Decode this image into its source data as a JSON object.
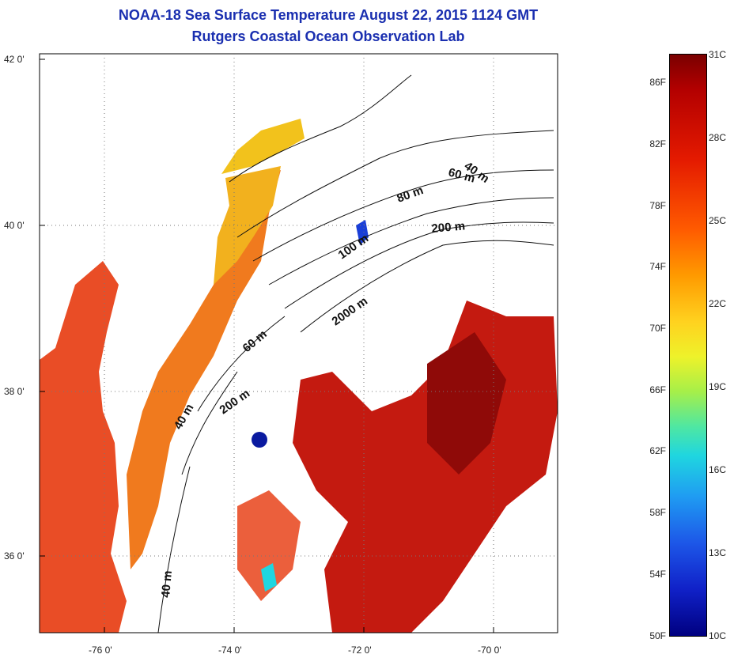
{
  "header": {
    "title": "NOAA-18 Sea Surface Temperature August 22, 2015 1124 GMT",
    "subtitle": "Rutgers Coastal Ocean Observation Lab"
  },
  "map": {
    "lat_ticks": [
      "42 0'",
      "40 0'",
      "38 0'",
      "36 0'"
    ],
    "lon_ticks": [
      "-76 0'",
      "-74 0'",
      "-72 0'",
      "-70 0'"
    ],
    "depth_labels": [
      "40 m",
      "60 m",
      "80 m",
      "200 m",
      "100 m",
      "2000 m",
      "60 m",
      "200 m",
      "40 m",
      "40 m"
    ]
  },
  "colorbar": {
    "fahrenheit": [
      "86F",
      "82F",
      "78F",
      "74F",
      "70F",
      "66F",
      "62F",
      "58F",
      "54F",
      "50F"
    ],
    "celsius": [
      "31C",
      "28C",
      "25C",
      "22C",
      "19C",
      "16C",
      "13C",
      "10C"
    ],
    "colors": [
      "#7a0000",
      "#e41a00",
      "#ff9a00",
      "#eef22a",
      "#4fe7a2",
      "#1f9cf2",
      "#1021c8",
      "#000080"
    ]
  },
  "palette": {
    "warm": "#e8431a",
    "hot": "#c41a10",
    "coastal": "#f07a1e",
    "cool": "#f2c21c",
    "cold": "#1a3fd8",
    "title_color": "#1a2fb0"
  }
}
